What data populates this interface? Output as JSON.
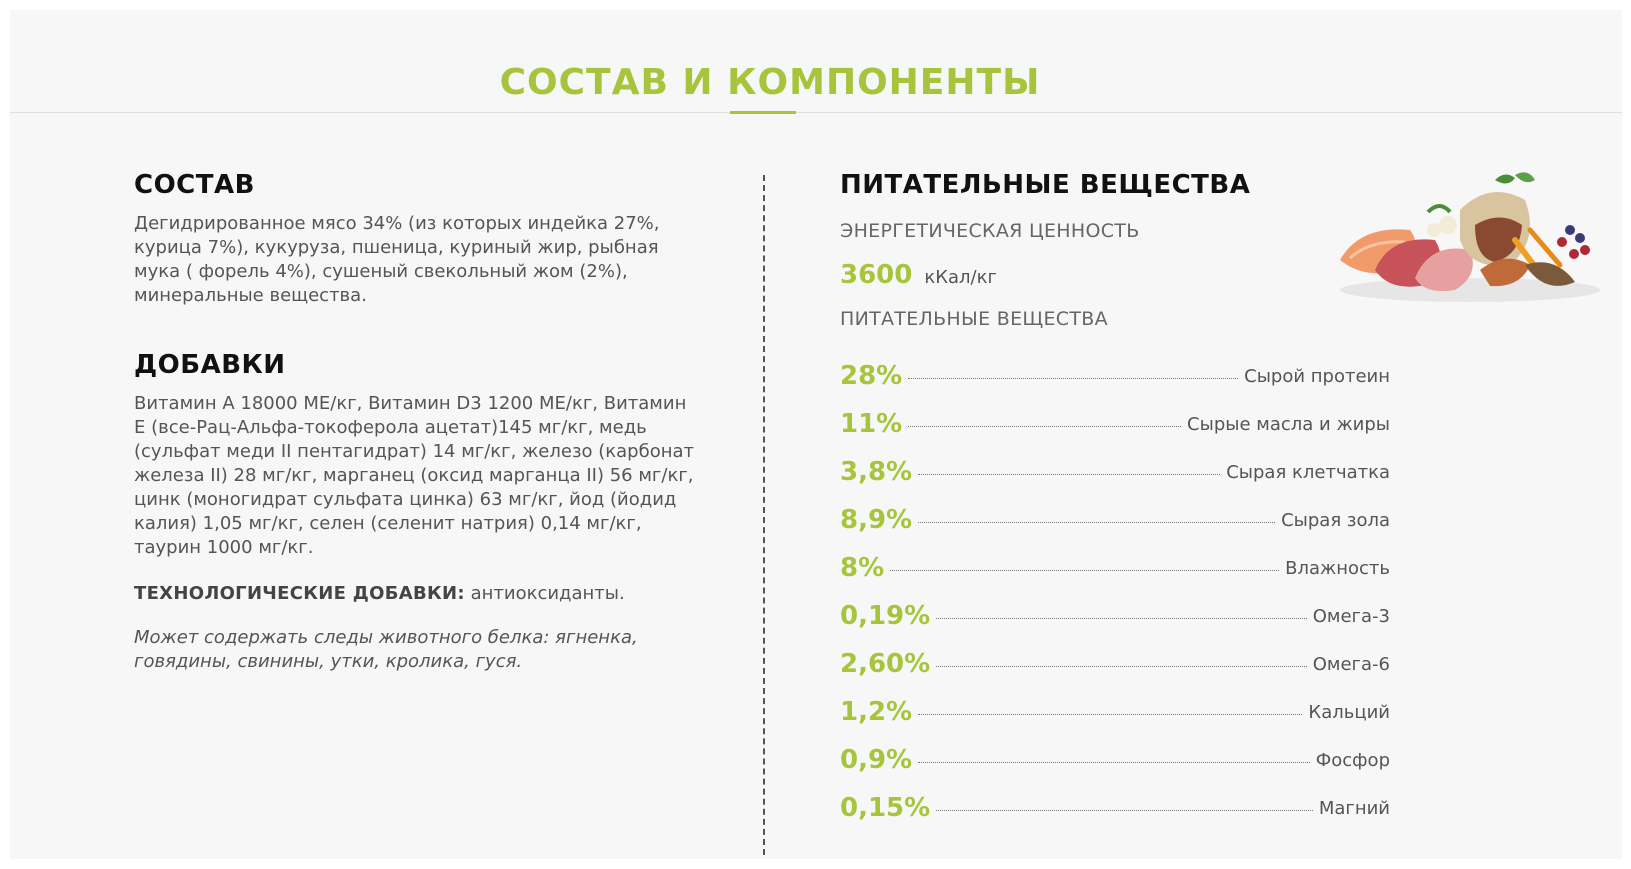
{
  "header": {
    "title": "СОСТАВ И КОМПОНЕНТЫ"
  },
  "composition": {
    "heading": "СОСТАВ",
    "text": "Дегидрированное мясо 34% (из которых индейка 27%, курица 7%), кукуруза, пшеница, куриный жир, рыбная мука ( форель 4%), сушеный свекольный жом (2%), минеральные вещества."
  },
  "additives": {
    "heading": "ДОБАВКИ",
    "text": "Витамин А 18000 МЕ/кг, Витамин D3 1200 МЕ/кг, Витамин Е (все-Рац-Альфа-токоферола ацетат)145 мг/кг, медь (сульфат меди II пентагидрат) 14 мг/кг, железо (карбонат железа II) 28 мг/кг, марганец (оксид марганца II) 56 мг/кг, цинк (моногидрат сульфата цинка) 63 мг/кг, йод (йодид калия) 1,05 мг/кг, селен (селенит натрия) 0,14 мг/кг, таурин 1000 мг/кг.",
    "tech_label": "ТЕХНОЛОГИЧЕСКИЕ ДОБАВКИ:",
    "tech_value": " антиоксиданты.",
    "note": "Может содержать следы животного белка: ягненка, говядины, свинины, утки, кролика, гуся."
  },
  "nutrition": {
    "heading": "ПИТАТЕЛЬНЫЕ ВЕЩЕСТВА",
    "energy_label": "ЭНЕРГЕТИЧЕСКАЯ ЦЕННОСТЬ",
    "energy_value": "3600",
    "energy_unit": "кКал/кг",
    "nutrients_label": "ПИТАТЕЛЬНЫЕ ВЕЩЕСТВА",
    "items": [
      {
        "value": "28%",
        "name": "Сырой протеин"
      },
      {
        "value": "11%",
        "name": "Сырые масла и жиры"
      },
      {
        "value": "3,8%",
        "name": "Сырая клетчатка"
      },
      {
        "value": "8,9%",
        "name": "Сырая зола"
      },
      {
        "value": "8%",
        "name": "Влажность"
      },
      {
        "value": "0,19%",
        "name": "Омега-3"
      },
      {
        "value": "2,60%",
        "name": "Омега-6"
      },
      {
        "value": "1,2%",
        "name": "Кальций"
      },
      {
        "value": "0,9%",
        "name": "Фосфор"
      },
      {
        "value": "0,15%",
        "name": "Магний"
      }
    ]
  },
  "colors": {
    "accent": "#a8c43d",
    "heading": "#111111",
    "text": "#555555",
    "background": "#f7f7f7"
  }
}
